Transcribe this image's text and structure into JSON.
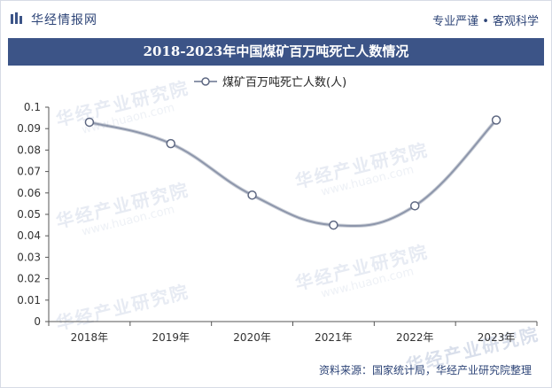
{
  "header": {
    "brand": "华经情报网",
    "slogan": "专业严谨 • 客观科学"
  },
  "title": "2018-2023年中国煤矿百万吨死亡人数情况",
  "source": "资料来源：国家统计局，华经产业研究院整理",
  "watermark": {
    "cn": "华经产业研究院",
    "en": "www.huaon.com"
  },
  "colors": {
    "title_band": "#3c5487",
    "line": "#8d96ab",
    "marker_fill": "#ffffff",
    "text_dark": "#2d4477"
  },
  "chart_data": {
    "type": "line",
    "smooth": true,
    "categories": [
      "2018年",
      "2019年",
      "2020年",
      "2021年",
      "2022年",
      "2023年"
    ],
    "series": [
      {
        "name": "煤矿百万吨死亡人数(人)",
        "values": [
          0.093,
          0.083,
          0.059,
          0.045,
          0.054,
          0.094
        ]
      }
    ],
    "ylim": [
      0,
      0.1
    ],
    "yticks": [
      "0",
      "0.01",
      "0.02",
      "0.03",
      "0.04",
      "0.05",
      "0.06",
      "0.07",
      "0.08",
      "0.09",
      "0.1"
    ],
    "legend_position": "top-center",
    "grid": false
  }
}
